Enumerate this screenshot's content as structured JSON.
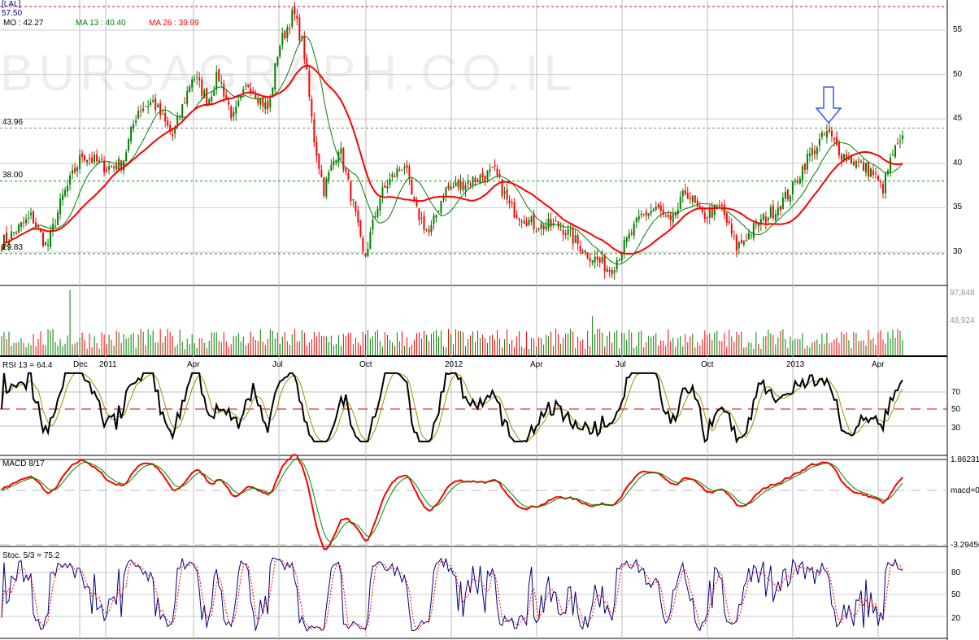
{
  "watermark": "BURSAGRAPH.CO.IL",
  "legend": {
    "symbol": "[LAL]",
    "max_label": "57.50",
    "price_label": "MO :",
    "price_value": "42.27",
    "ma13": "MA 13 : 40.40",
    "ma26": "MA 26 : 39.99"
  },
  "levels": [
    {
      "label": "57.50",
      "value": 57.5,
      "color": "#ff0000"
    },
    {
      "label": "43.96",
      "value": 43.96,
      "color": "#808080"
    },
    {
      "label": "38.00",
      "value": 38.0,
      "color": "#00a000"
    },
    {
      "label": "29.83",
      "value": 29.83,
      "color": "#00a000"
    }
  ],
  "colors": {
    "up": "#008000",
    "down": "#ff0000",
    "ma13": "#008000",
    "ma26": "#ff0000",
    "arrow": "#3355ff"
  },
  "x_labels": [
    "Dec",
    "2011",
    "Apr",
    "Jul",
    "Oct",
    "2012",
    "Apr",
    "Jul",
    "Oct",
    "2013",
    "Apr"
  ],
  "panels": {
    "rsi": {
      "title": "RSI 13 = 64.4",
      "ticks": [
        "70",
        "50",
        "30"
      ]
    },
    "macd": {
      "title": "MACD 8/17",
      "ticks": [
        "1.86231",
        "macd=0",
        "-3.29456"
      ]
    },
    "stoch": {
      "title": "Stoc. 5/3 = 75.2",
      "ticks": [
        "80",
        "50",
        "20"
      ]
    },
    "volume": {
      "ticks": [
        "97,848",
        "48,924"
      ]
    }
  },
  "chart_data": {
    "type": "candlestick",
    "price_axis": {
      "ticks": [
        55,
        50,
        45,
        40,
        35,
        30
      ],
      "ylim": [
        27,
        58
      ]
    },
    "price_waypoints": [
      [
        0,
        31
      ],
      [
        6,
        34
      ],
      [
        9,
        30.5
      ],
      [
        12,
        36
      ],
      [
        16,
        41
      ],
      [
        21,
        39.5
      ],
      [
        24,
        40
      ],
      [
        27,
        46
      ],
      [
        30,
        47
      ],
      [
        34,
        43
      ],
      [
        38,
        50
      ],
      [
        41,
        47
      ],
      [
        43,
        50
      ],
      [
        46,
        45
      ],
      [
        49,
        49
      ],
      [
        53,
        46
      ],
      [
        55,
        53
      ],
      [
        58,
        57
      ],
      [
        60,
        53
      ],
      [
        62,
        43
      ],
      [
        64,
        37
      ],
      [
        67,
        42
      ],
      [
        70,
        35
      ],
      [
        72,
        29
      ],
      [
        75,
        36
      ],
      [
        77,
        38
      ],
      [
        80,
        40
      ],
      [
        82,
        35
      ],
      [
        85,
        32
      ],
      [
        88,
        37
      ],
      [
        93,
        38
      ],
      [
        98,
        39
      ],
      [
        101,
        35
      ],
      [
        106,
        33
      ],
      [
        111,
        33
      ],
      [
        116,
        30
      ],
      [
        121,
        28
      ],
      [
        124,
        31
      ],
      [
        127,
        34
      ],
      [
        130,
        35
      ],
      [
        133,
        33
      ],
      [
        136,
        37
      ],
      [
        139,
        34
      ],
      [
        143,
        35
      ],
      [
        146,
        30.5
      ],
      [
        150,
        33
      ],
      [
        154,
        35
      ],
      [
        157,
        37
      ],
      [
        160,
        40.5
      ],
      [
        164,
        43.5
      ],
      [
        167,
        41
      ],
      [
        170,
        40
      ],
      [
        173,
        39
      ],
      [
        175,
        37
      ],
      [
        177,
        41
      ],
      [
        179,
        42.5
      ]
    ],
    "waypoint_unit": "week index (Nov 2010 - May 2013)"
  }
}
